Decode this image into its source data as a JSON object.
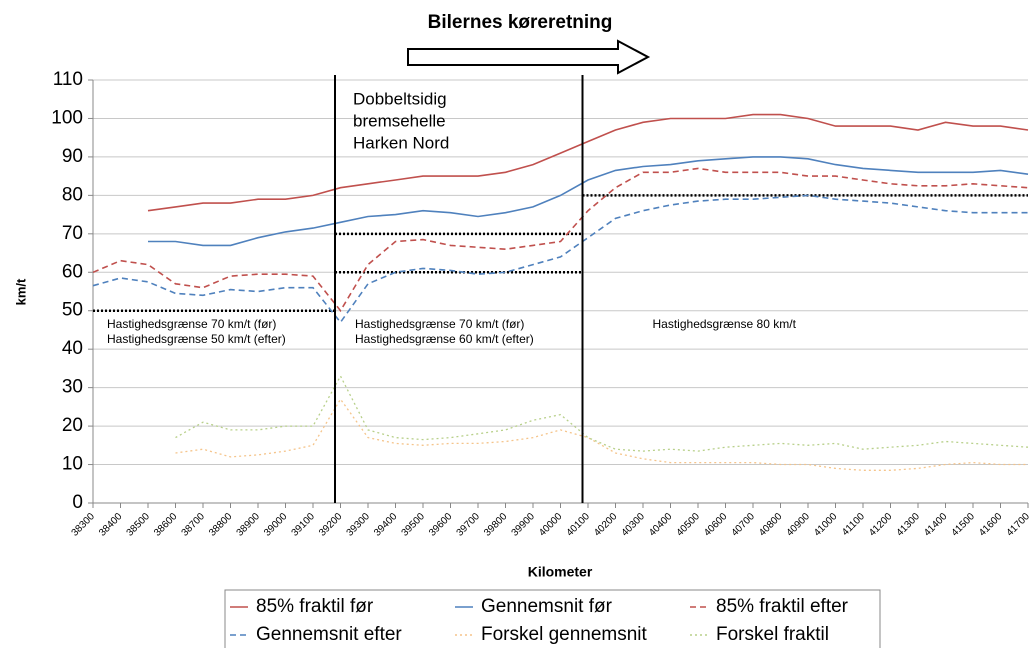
{
  "chart_data": {
    "type": "line",
    "title": "Bilernes køreretning",
    "xlabel": "Kilometer",
    "ylabel": "km/t",
    "x": [
      38300,
      38400,
      38500,
      38600,
      38700,
      38800,
      38900,
      39000,
      39100,
      39200,
      39300,
      39400,
      39500,
      39600,
      39700,
      39800,
      39900,
      40000,
      40100,
      40200,
      40300,
      40400,
      40500,
      40600,
      40700,
      40800,
      40900,
      41000,
      41100,
      41200,
      41300,
      41400,
      41500,
      41600,
      41700
    ],
    "xlim": [
      38300,
      41700
    ],
    "xticks": [
      38300,
      38400,
      38500,
      38600,
      38700,
      38800,
      38900,
      39000,
      39100,
      39200,
      39300,
      39400,
      39500,
      39600,
      39700,
      39800,
      39900,
      40000,
      40100,
      40200,
      40300,
      40400,
      40500,
      40600,
      40700,
      40800,
      40900,
      41000,
      41100,
      41200,
      41300,
      41400,
      41500,
      41600,
      41700
    ],
    "ylim": [
      0,
      110
    ],
    "yticks": [
      0,
      10,
      20,
      30,
      40,
      50,
      60,
      70,
      80,
      90,
      100,
      110
    ],
    "grid": true,
    "series": [
      {
        "name": "85% fraktil før",
        "color": "#c0504d",
        "style": "solid",
        "values": [
          null,
          null,
          76,
          77,
          78,
          78,
          79,
          79,
          80,
          82,
          83,
          84,
          85,
          85,
          85,
          86,
          88,
          91,
          94,
          97,
          99,
          100,
          100,
          100,
          101,
          101,
          100,
          98,
          98,
          98,
          97,
          99,
          98,
          98,
          97
        ]
      },
      {
        "name": "Gennemsnit før",
        "color": "#4f81bd",
        "style": "solid",
        "values": [
          null,
          null,
          68,
          68,
          67,
          67,
          69,
          70.5,
          71.5,
          73,
          74.5,
          75,
          76,
          75.5,
          74.5,
          75.5,
          77,
          80,
          84,
          86.5,
          87.5,
          88,
          89,
          89.5,
          90,
          90,
          89.5,
          88,
          87,
          86.5,
          86,
          86,
          86,
          86.5,
          85.5
        ]
      },
      {
        "name": "85% fraktil efter",
        "color": "#c0504d",
        "style": "dashed",
        "values": [
          60,
          63,
          62,
          57,
          56,
          59,
          59.5,
          59.5,
          59,
          50,
          62,
          68,
          68.5,
          67,
          66.5,
          66,
          67,
          68,
          76,
          82,
          86,
          86,
          87,
          86,
          86,
          86,
          85,
          85,
          84,
          83,
          82.5,
          82.5,
          83,
          82.5,
          82
        ]
      },
      {
        "name": "Gennemsnit efter",
        "color": "#4f81bd",
        "style": "dashed",
        "values": [
          56.5,
          58.5,
          57.5,
          54.5,
          54,
          55.5,
          55,
          56,
          56,
          47,
          57,
          60,
          61,
          60.5,
          59.5,
          60,
          62,
          64,
          69,
          74,
          76,
          77.5,
          78.5,
          79,
          79,
          79.5,
          80,
          79,
          78.5,
          78,
          77,
          76,
          75.5,
          75.5,
          75.5
        ]
      },
      {
        "name": "Forskel gennemsnit",
        "color": "#f5c48a",
        "style": "dotted",
        "values": [
          null,
          null,
          null,
          13,
          14,
          12,
          12.5,
          13.5,
          15,
          27,
          17,
          15.5,
          15,
          15.5,
          15.5,
          16,
          17,
          19,
          17,
          13,
          11.5,
          10.5,
          10.5,
          10.5,
          10.5,
          10,
          10,
          9,
          8.5,
          8.5,
          9,
          10,
          10.5,
          10,
          10
        ]
      },
      {
        "name": "Forskel  fraktil",
        "color": "#b8d08a",
        "style": "dotted",
        "values": [
          null,
          null,
          null,
          17,
          21,
          19,
          19,
          20,
          20,
          33,
          19,
          17,
          16.5,
          17,
          18,
          19,
          21.5,
          23,
          17,
          14,
          13.5,
          14,
          13.5,
          14.5,
          15,
          15.5,
          15,
          15.5,
          14,
          14.5,
          15,
          16,
          15.5,
          15,
          14.5
        ]
      }
    ],
    "markers": [
      39180,
      40080
    ],
    "marker_label": [
      "Dobbeltsidig",
      "bremsehelle",
      "Harken Nord"
    ],
    "limit_lines": [
      {
        "value": 50,
        "from": 38300,
        "to": 39180
      },
      {
        "value": 70,
        "from": 39180,
        "to": 40080
      },
      {
        "value": 60,
        "from": 39180,
        "to": 40080
      },
      {
        "value": 80,
        "from": 40080,
        "to": 41700
      }
    ],
    "zone_labels": [
      [
        "Hastighedsgrænse 70 km/t (før)",
        "Hastighedsgrænse 50 km/t (efter)"
      ],
      [
        "Hastighedsgrænse 70 km/t (før)",
        "Hastighedsgrænse 60 km/t (efter)"
      ],
      [
        "Hastighedsgrænse 80 km/t"
      ]
    ]
  }
}
